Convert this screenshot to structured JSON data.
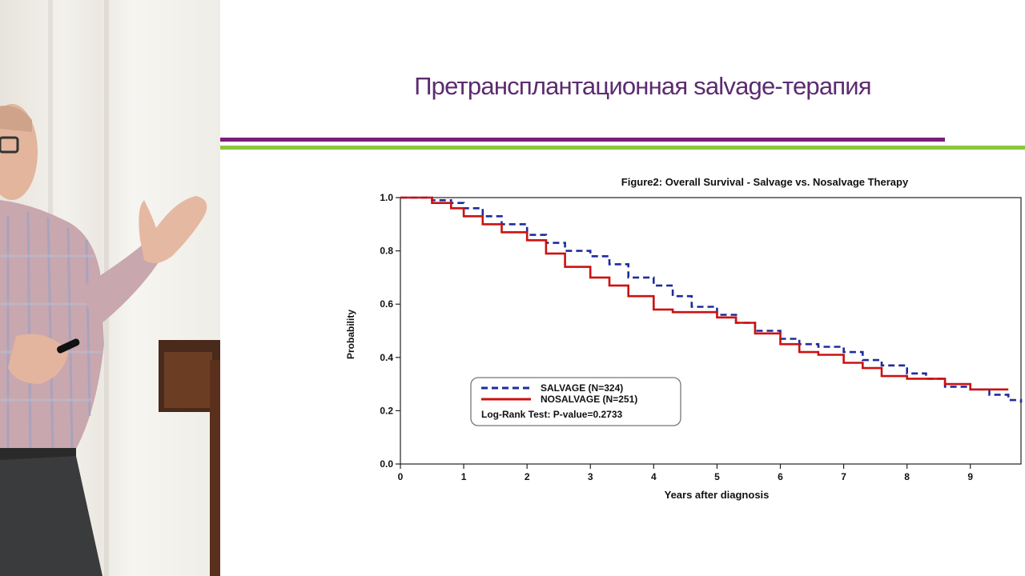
{
  "slide": {
    "title": "Претрансплантационная salvage-терапия",
    "colors": {
      "title": "#5b2c6f",
      "rule_purple": "#7b1e7a",
      "rule_green": "#8cc63f"
    }
  },
  "chart_data": {
    "type": "line",
    "title": "Figure2: Overall Survival - Salvage vs. Nosalvage Therapy",
    "xlabel": "Years after diagnosis",
    "ylabel": "Probability",
    "xlim": [
      0,
      9.8
    ],
    "ylim": [
      0,
      1.0
    ],
    "xticks": [
      "0",
      "1",
      "2",
      "3",
      "4",
      "5",
      "6",
      "7",
      "8",
      "9"
    ],
    "yticks": [
      "0.0",
      "0.2",
      "0.4",
      "0.6",
      "0.8",
      "1.0"
    ],
    "grid": false,
    "legend_position": "lower-left",
    "annotation": "Log-Rank Test: P-value=0.2733",
    "series": [
      {
        "name": "SALVAGE (N=324)",
        "color": "#1f2b9c",
        "style": "dashed",
        "x": [
          0,
          0.3,
          0.5,
          0.8,
          1.0,
          1.3,
          1.6,
          2.0,
          2.3,
          2.6,
          3.0,
          3.3,
          3.6,
          4.0,
          4.3,
          4.6,
          5.0,
          5.3,
          5.6,
          6.0,
          6.3,
          6.6,
          7.0,
          7.3,
          7.6,
          8.0,
          8.3,
          8.6,
          9.0,
          9.3,
          9.6,
          9.8
        ],
        "y": [
          1.0,
          1.0,
          0.99,
          0.98,
          0.96,
          0.93,
          0.9,
          0.86,
          0.83,
          0.8,
          0.78,
          0.75,
          0.7,
          0.67,
          0.63,
          0.59,
          0.56,
          0.53,
          0.5,
          0.47,
          0.45,
          0.44,
          0.42,
          0.39,
          0.37,
          0.34,
          0.32,
          0.29,
          0.28,
          0.26,
          0.24,
          0.23
        ]
      },
      {
        "name": "NOSALVAGE (N=251)",
        "color": "#cc1111",
        "style": "solid",
        "x": [
          0,
          0.3,
          0.5,
          0.8,
          1.0,
          1.3,
          1.6,
          2.0,
          2.3,
          2.6,
          3.0,
          3.3,
          3.6,
          4.0,
          4.3,
          4.6,
          5.0,
          5.3,
          5.6,
          6.0,
          6.3,
          6.6,
          7.0,
          7.3,
          7.6,
          8.0,
          8.3,
          8.6,
          9.0,
          9.3,
          9.6
        ],
        "y": [
          1.0,
          1.0,
          0.98,
          0.96,
          0.93,
          0.9,
          0.87,
          0.84,
          0.79,
          0.74,
          0.7,
          0.67,
          0.63,
          0.58,
          0.57,
          0.57,
          0.55,
          0.53,
          0.49,
          0.45,
          0.42,
          0.41,
          0.38,
          0.36,
          0.33,
          0.32,
          0.32,
          0.3,
          0.28,
          0.28,
          0.28
        ]
      }
    ]
  }
}
